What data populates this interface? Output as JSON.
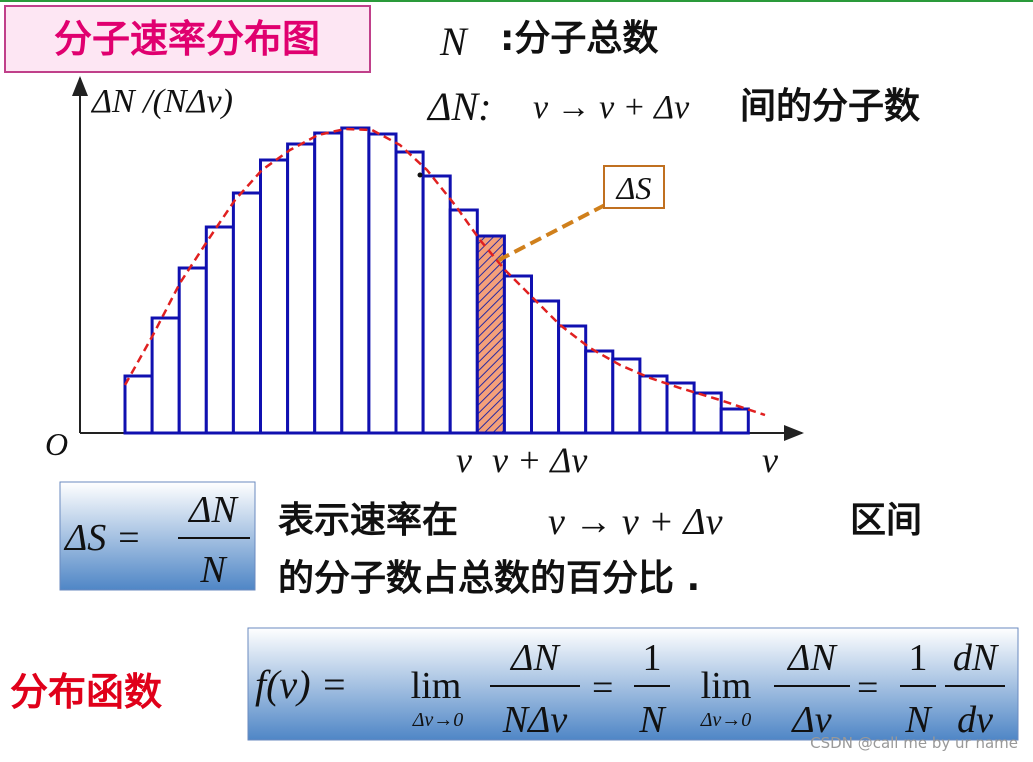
{
  "title": "分子速率分布图",
  "definitions": [
    {
      "symbol": "N",
      "text": ":分子总数"
    },
    {
      "symbol": "ΔN:",
      "formula": "v → v + Δv",
      "text": "间的分子数"
    }
  ],
  "figure": {
    "y_label": "ΔN /(NΔv)",
    "origin": "O",
    "x_label": "v",
    "interval_start": "v",
    "interval_end": "v + Δv",
    "area_label": "ΔS"
  },
  "formula1": {
    "lhs": "ΔS =",
    "numerator": "ΔN",
    "denominator": "N"
  },
  "explanation": {
    "line1_before": "表示速率在",
    "line1_formula": "v → v + Δv",
    "line1_after": "区间",
    "line2": "的分子数占总数的百分比 ."
  },
  "function_label": "分布函数",
  "formula2": {
    "lhs": "f(v) =",
    "lim1": "lim",
    "lim1_sub": "Δv→0",
    "frac1_num": "ΔN",
    "frac1_den": "NΔv",
    "eq2": "=",
    "frac2_num": "1",
    "frac2_den": "N",
    "lim2": "lim",
    "lim2_sub": "Δv→0",
    "frac3_num": "ΔN",
    "frac3_den": "Δv",
    "eq3": "=",
    "frac4_num": "1",
    "frac4_den": "N",
    "frac5_num": "dN",
    "frac5_den": "dv"
  },
  "watermark": "CSDN @call me by ur name"
}
